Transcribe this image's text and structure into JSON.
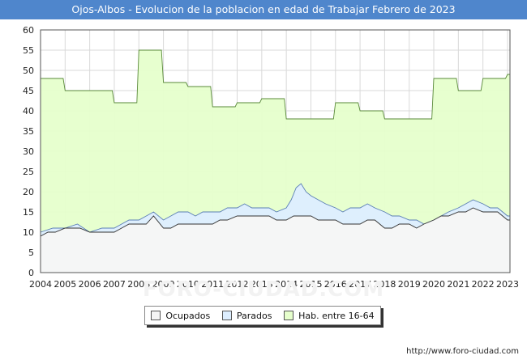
{
  "chart_data": {
    "type": "area",
    "title": "Ojos-Albos - Evolucion de la poblacion en edad de Trabajar Febrero de 2023",
    "xlabel": "",
    "ylabel": "",
    "xlim": [
      2004,
      2023.1
    ],
    "ylim": [
      0,
      60
    ],
    "y_ticks": [
      0,
      5,
      10,
      15,
      20,
      25,
      30,
      35,
      40,
      45,
      50,
      55,
      60
    ],
    "x_ticks": [
      "2004",
      "2005",
      "2006",
      "2007",
      "2008",
      "2009",
      "2010",
      "2011",
      "2012",
      "2013",
      "2014",
      "2015",
      "2016",
      "2017",
      "2018",
      "2019",
      "2020",
      "2021",
      "2022",
      "2023"
    ],
    "grid": true,
    "legend_position": "bottom-center",
    "series": [
      {
        "name": "Hab. entre 16-64",
        "color": "#e6ffcc",
        "line_color": "#5a8a3a",
        "x": [
          2004,
          2004.92,
          2005,
          2006.92,
          2007,
          2007.92,
          2008,
          2008.92,
          2009,
          2009.92,
          2010,
          2010.92,
          2011,
          2011.92,
          2012,
          2012.92,
          2013,
          2013.92,
          2014,
          2015.92,
          2016,
          2016.92,
          2017,
          2017.92,
          2018,
          2019.92,
          2020,
          2020.92,
          2021,
          2021.92,
          2022,
          2022.92,
          2023,
          2023.1
        ],
        "y": [
          48,
          48,
          45,
          45,
          42,
          42,
          55,
          55,
          47,
          47,
          46,
          46,
          41,
          41,
          42,
          42,
          43,
          43,
          38,
          38,
          42,
          42,
          40,
          40,
          38,
          38,
          48,
          48,
          45,
          45,
          48,
          48,
          49,
          49
        ]
      },
      {
        "name": "Parados",
        "color": "#ddeeff",
        "line_color": "#5b7fb5",
        "x": [
          2004,
          2004.5,
          2005,
          2005.5,
          2006,
          2006.5,
          2007,
          2007.3,
          2007.6,
          2008,
          2008.3,
          2008.6,
          2009,
          2009.3,
          2009.6,
          2010,
          2010.3,
          2010.6,
          2011,
          2011.3,
          2011.6,
          2012,
          2012.3,
          2012.6,
          2013,
          2013.3,
          2013.6,
          2014,
          2014.2,
          2014.4,
          2014.6,
          2014.8,
          2015,
          2015.3,
          2015.6,
          2016,
          2016.3,
          2016.6,
          2017,
          2017.3,
          2017.6,
          2018,
          2018.3,
          2018.6,
          2019,
          2019.3,
          2019.6,
          2020,
          2020.3,
          2020.6,
          2021,
          2021.3,
          2021.6,
          2022,
          2022.3,
          2022.6,
          2023,
          2023.1
        ],
        "y": [
          10,
          11,
          11,
          12,
          10,
          11,
          11,
          12,
          13,
          13,
          14,
          15,
          13,
          14,
          15,
          15,
          14,
          15,
          15,
          15,
          16,
          16,
          17,
          16,
          16,
          16,
          15,
          16,
          18,
          21,
          22,
          20,
          19,
          18,
          17,
          16,
          15,
          16,
          16,
          17,
          16,
          15,
          14,
          14,
          13,
          13,
          12,
          13,
          14,
          15,
          16,
          17,
          18,
          17,
          16,
          16,
          14,
          14
        ]
      },
      {
        "name": "Ocupados",
        "color": "#f5f5f5",
        "line_color": "#333333",
        "x": [
          2004,
          2004.3,
          2004.6,
          2005,
          2005.3,
          2005.6,
          2006,
          2006.3,
          2006.6,
          2007,
          2007.3,
          2007.6,
          2008,
          2008.3,
          2008.6,
          2009,
          2009.3,
          2009.6,
          2010,
          2010.3,
          2010.6,
          2011,
          2011.3,
          2011.6,
          2012,
          2012.3,
          2012.6,
          2013,
          2013.3,
          2013.6,
          2014,
          2014.3,
          2014.6,
          2015,
          2015.3,
          2015.6,
          2016,
          2016.3,
          2016.6,
          2017,
          2017.3,
          2017.6,
          2018,
          2018.3,
          2018.6,
          2019,
          2019.3,
          2019.6,
          2020,
          2020.3,
          2020.6,
          2021,
          2021.3,
          2021.6,
          2022,
          2022.3,
          2022.6,
          2023,
          2023.1
        ],
        "y": [
          9,
          10,
          10,
          11,
          11,
          11,
          10,
          10,
          10,
          10,
          11,
          12,
          12,
          12,
          14,
          11,
          11,
          12,
          12,
          12,
          12,
          12,
          13,
          13,
          14,
          14,
          14,
          14,
          14,
          13,
          13,
          14,
          14,
          14,
          13,
          13,
          13,
          12,
          12,
          12,
          13,
          13,
          11,
          11,
          12,
          12,
          11,
          12,
          13,
          14,
          14,
          15,
          15,
          16,
          15,
          15,
          15,
          13,
          13
        ]
      }
    ]
  },
  "source": "http://www.foro-ciudad.com",
  "watermark": "FORO-CIUDAD.COM"
}
